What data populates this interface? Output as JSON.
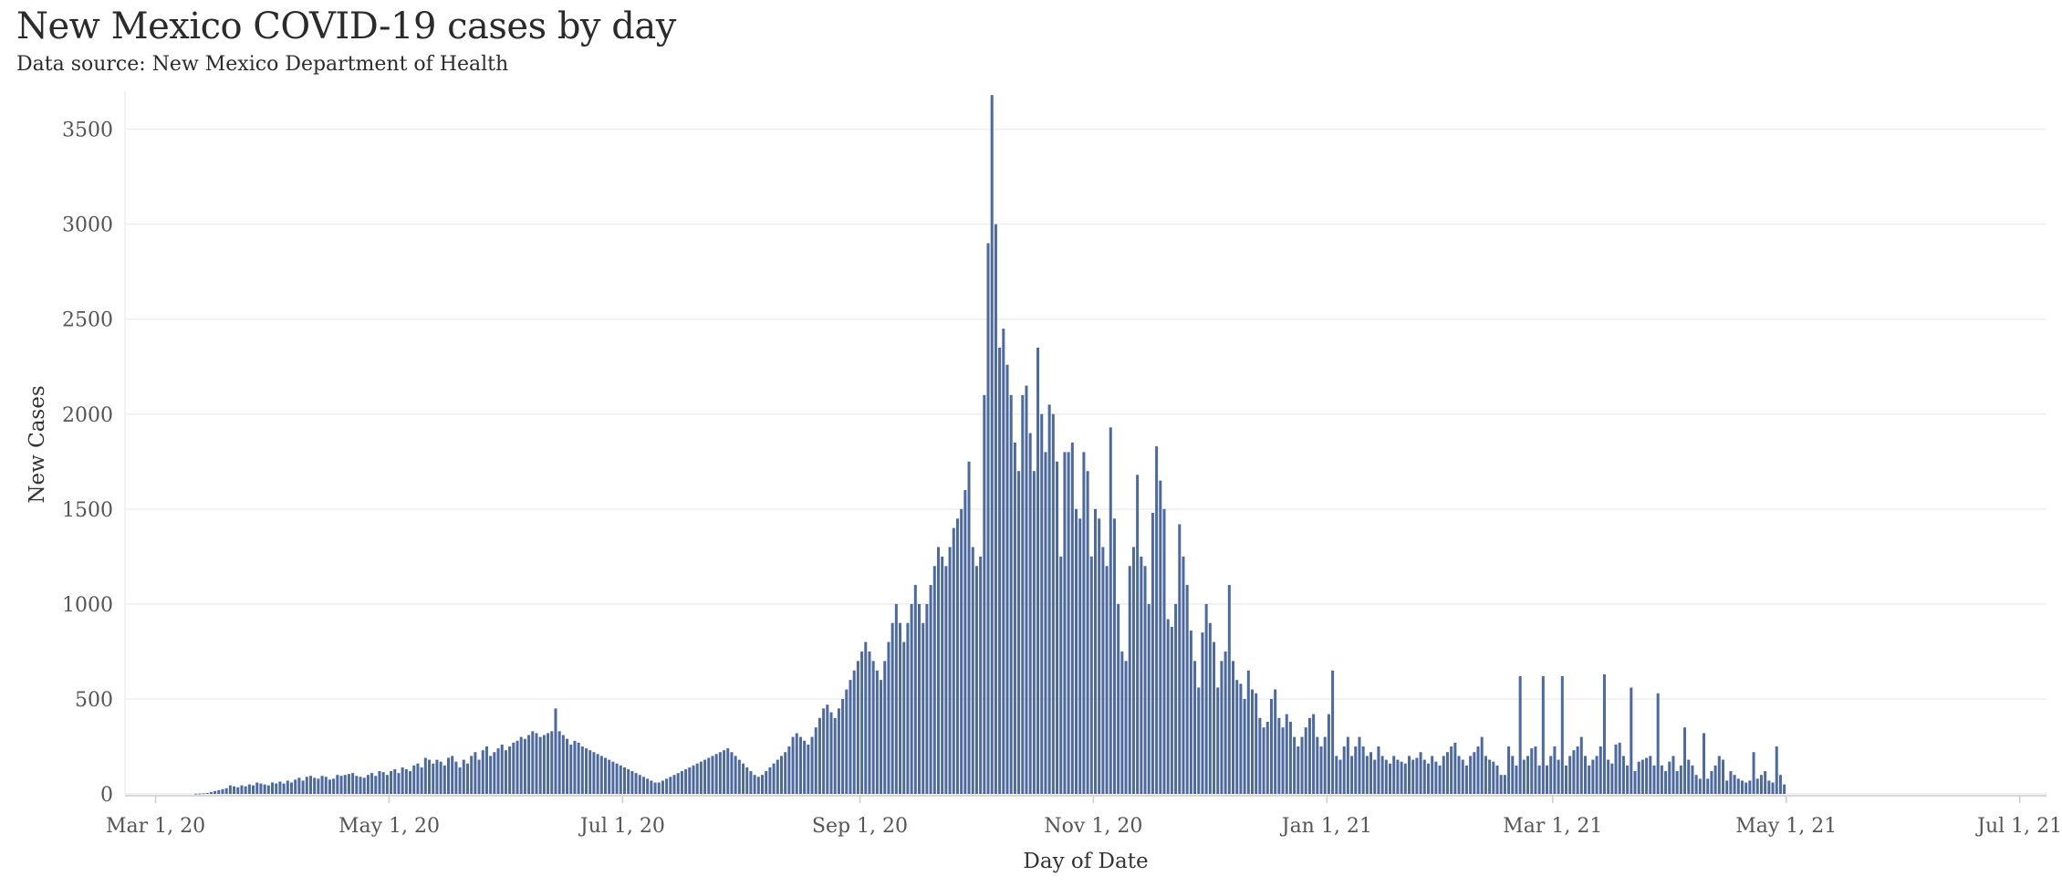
{
  "header": {
    "title": "New Mexico COVID-19 cases by day",
    "subtitle": "Data source: New Mexico Department of Health"
  },
  "colors": {
    "bar": "#4e6a9c",
    "grid": "#eeeeee",
    "axis": "#cccccc"
  },
  "chart_data": {
    "type": "bar",
    "xlabel": "Day of Date",
    "ylabel": "New Cases",
    "x_ticks": [
      "Mar 1, 20",
      "May 1, 20",
      "Jul 1, 20",
      "Sep 1, 20",
      "Nov 1, 20",
      "Jan 1, 21",
      "Mar 1, 21",
      "May 1, 21",
      "Jul 1, 21"
    ],
    "y_ticks": [
      0,
      500,
      1000,
      1500,
      2000,
      2500,
      3000,
      3500
    ],
    "ylim": [
      0,
      3700
    ],
    "xlim": [
      "2020-02-22",
      "2021-07-08"
    ],
    "grid": true,
    "series": [
      {
        "start_date": "2020-03-11",
        "values": [
          1,
          2,
          3,
          5,
          10,
          15,
          20,
          25,
          30,
          45,
          40,
          35,
          45,
          40,
          50,
          45,
          60,
          55,
          50,
          45,
          60,
          55,
          65,
          55,
          70,
          60,
          75,
          85,
          70,
          90,
          95,
          85,
          80,
          95,
          90,
          75,
          80,
          100,
          95,
          100,
          105,
          110,
          95,
          90,
          85,
          100,
          110,
          95,
          120,
          115,
          100,
          120,
          130,
          110,
          140,
          130,
          120,
          150,
          160,
          140,
          190,
          180,
          160,
          180,
          170,
          150,
          190,
          200,
          170,
          140,
          180,
          160,
          200,
          220,
          180,
          230,
          250,
          200,
          220,
          240,
          260,
          230,
          250,
          270,
          280,
          300,
          290,
          310,
          330,
          320,
          300,
          310,
          320,
          330,
          450,
          330,
          310,
          290,
          260,
          280,
          270,
          250,
          240,
          230,
          220,
          210,
          200,
          190,
          180,
          170,
          160,
          150,
          140,
          130,
          120,
          110,
          100,
          90,
          80,
          70,
          60,
          60,
          70,
          80,
          90,
          100,
          110,
          120,
          130,
          140,
          150,
          160,
          170,
          180,
          190,
          200,
          210,
          220,
          230,
          240,
          220,
          200,
          180,
          160,
          140,
          120,
          100,
          90,
          100,
          120,
          140,
          160,
          180,
          200,
          220,
          250,
          300,
          320,
          300,
          280,
          260,
          300,
          350,
          400,
          450,
          470,
          430,
          400,
          450,
          500,
          550,
          600,
          650,
          700,
          750,
          800,
          750,
          700,
          650,
          600,
          700,
          800,
          900,
          1000,
          900,
          800,
          900,
          1000,
          1100,
          1000,
          900,
          1000,
          1100,
          1200,
          1300,
          1250,
          1200,
          1300,
          1400,
          1450,
          1500,
          1600,
          1750,
          1300,
          1200,
          1250,
          2100,
          2900,
          3680,
          3000,
          2350,
          2450,
          2260,
          2100,
          1850,
          1700,
          2100,
          2150,
          1900,
          1700,
          2350,
          2000,
          1800,
          2050,
          2000,
          1750,
          1250,
          1800,
          1800,
          1850,
          1500,
          1450,
          1800,
          1700,
          1250,
          1500,
          1450,
          1300,
          1200,
          1930,
          1450,
          1000,
          750,
          700,
          1200,
          1300,
          1680,
          1250,
          1200,
          1000,
          1480,
          1830,
          1650,
          1500,
          920,
          880,
          1000,
          1420,
          1250,
          1100,
          860,
          700,
          560,
          850,
          1000,
          900,
          800,
          560,
          700,
          750,
          1100,
          700,
          600,
          580,
          500,
          650,
          550,
          530,
          400,
          350,
          380,
          500,
          550,
          400,
          350,
          420,
          380,
          300,
          250,
          300,
          350,
          400,
          420,
          300,
          250,
          300,
          420,
          650,
          200,
          180,
          250,
          300,
          200,
          250,
          300,
          250,
          200,
          220,
          180,
          250,
          200,
          180,
          160,
          200,
          180,
          170,
          160,
          200,
          180,
          190,
          220,
          180,
          160,
          200,
          170,
          150,
          200,
          220,
          250,
          270,
          200,
          180,
          150,
          200,
          220,
          250,
          300,
          200,
          180,
          170,
          150,
          100,
          100,
          250,
          200,
          150,
          620,
          180,
          200,
          240,
          250,
          150,
          620,
          150,
          200,
          250,
          180,
          620,
          150,
          200,
          230,
          250,
          300,
          200,
          150,
          180,
          200,
          250,
          630,
          180,
          160,
          260,
          270,
          200,
          150,
          560,
          120,
          170,
          180,
          190,
          200,
          150,
          530,
          150,
          120,
          170,
          200,
          120,
          150,
          350,
          180,
          150,
          100,
          80,
          320,
          80,
          120,
          150,
          200,
          180,
          70,
          120,
          100,
          80,
          70,
          60,
          70,
          220,
          80,
          100,
          120,
          70,
          60,
          250,
          100,
          50
        ]
      }
    ]
  }
}
